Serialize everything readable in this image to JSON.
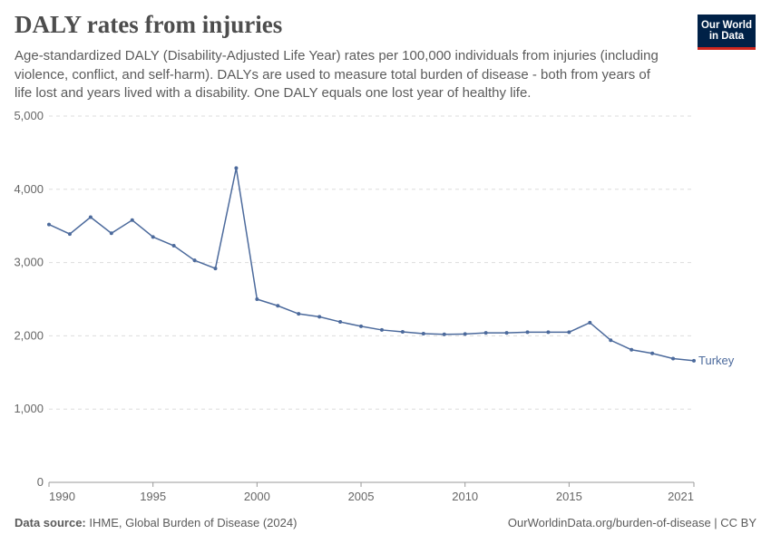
{
  "chart_data": {
    "type": "line",
    "title": "DALY rates from injuries",
    "subtitle": "Age-standardized DALY (Disability-Adjusted Life Year) rates per 100,000 individuals from injuries (including violence, conflict, and self-harm). DALYs are used to measure total burden of disease - both from years of life lost and years lived with a disability. One DALY equals one lost year of healthy life.",
    "logo": [
      "Our World",
      "in Data"
    ],
    "source_label": "Data source:",
    "source": "IHME, Global Burden of Disease (2024)",
    "url": "OurWorldinData.org/burden-of-disease | CC BY",
    "x": [
      1990,
      1991,
      1992,
      1993,
      1994,
      1995,
      1996,
      1997,
      1998,
      1999,
      2000,
      2001,
      2002,
      2003,
      2004,
      2005,
      2006,
      2007,
      2008,
      2009,
      2010,
      2011,
      2012,
      2013,
      2014,
      2015,
      2016,
      2017,
      2018,
      2019,
      2020,
      2021
    ],
    "series": [
      {
        "name": "Turkey",
        "color": "#4c6a9c",
        "values": [
          3520,
          3390,
          3620,
          3400,
          3580,
          3350,
          3230,
          3030,
          2920,
          4290,
          2500,
          2410,
          2300,
          2260,
          2190,
          2130,
          2080,
          2055,
          2030,
          2020,
          2025,
          2040,
          2040,
          2050,
          2050,
          2050,
          2180,
          1940,
          1810,
          1760,
          1690,
          1660
        ]
      }
    ],
    "xlim": [
      1990,
      2021
    ],
    "xticks": [
      1990,
      1995,
      2000,
      2005,
      2010,
      2015,
      2021
    ],
    "ylim": [
      0,
      5000
    ],
    "yticks": [
      0,
      {
        "value": 1000,
        "label": "1,000"
      },
      {
        "value": 2000,
        "label": "2,000"
      },
      {
        "value": 3000,
        "label": "3,000"
      },
      {
        "value": 4000,
        "label": "4,000"
      },
      {
        "value": 5000,
        "label": "5,000"
      }
    ],
    "grid": true
  }
}
